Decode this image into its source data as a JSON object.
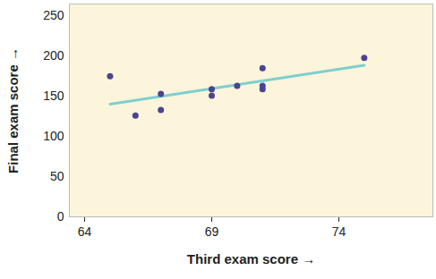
{
  "chart_data": {
    "type": "scatter",
    "x_label": "Third exam score",
    "y_label": "Final exam score",
    "x": [
      65,
      67,
      71,
      71,
      66,
      75,
      67,
      70,
      71,
      69,
      69
    ],
    "values": [
      175,
      133,
      185,
      163,
      126,
      198,
      153,
      163,
      159,
      151,
      159
    ],
    "color": "#4b4392",
    "marker": "circle",
    "trend_line": {
      "x": [
        65,
        75
      ],
      "values": [
        140.4,
        188.7
      ],
      "color": "#7fcfcf"
    },
    "xlim": [
      63.4,
      77.7
    ],
    "xticks": [
      64,
      69,
      74
    ],
    "ylim": [
      0,
      265
    ],
    "yticks": [
      0,
      50,
      100,
      150,
      200,
      250
    ],
    "grid": false
  }
}
